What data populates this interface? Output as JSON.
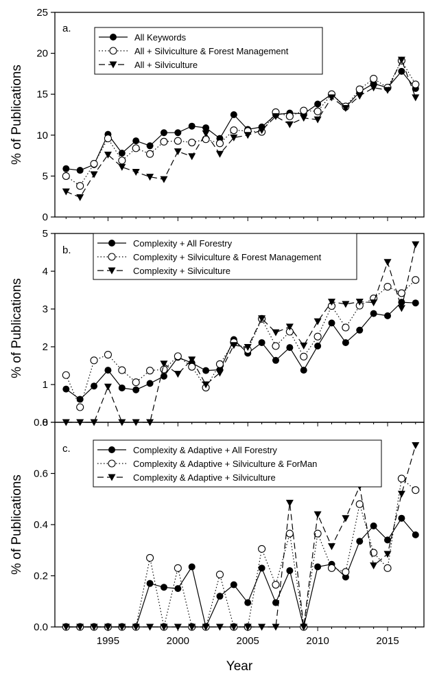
{
  "chart_data": [
    {
      "type": "line",
      "panel_label": "a.",
      "ylabel": "% of Publications",
      "ylim": [
        0,
        25
      ],
      "yticks": [
        "0",
        "5",
        "10",
        "15",
        "20",
        "25"
      ],
      "x": [
        1992,
        1993,
        1994,
        1995,
        1996,
        1997,
        1998,
        1999,
        2000,
        2001,
        2002,
        2003,
        2004,
        2005,
        2006,
        2007,
        2008,
        2009,
        2010,
        2011,
        2012,
        2013,
        2014,
        2015,
        2016,
        2017
      ],
      "series": [
        {
          "name": "All Keywords",
          "marker": "filled-circle",
          "line": "solid",
          "values": [
            5.9,
            5.7,
            6.4,
            10.1,
            7.8,
            9.3,
            8.7,
            10.3,
            10.3,
            11.1,
            10.9,
            9.6,
            12.5,
            10.7,
            11.0,
            12.5,
            12.7,
            12.6,
            13.8,
            15.0,
            13.4,
            15.3,
            16.3,
            15.8,
            17.8,
            15.7
          ]
        },
        {
          "name": "All + Silviculture & Forest Management",
          "marker": "open-circle",
          "line": "dotted",
          "values": [
            5.0,
            3.8,
            6.5,
            9.6,
            6.9,
            8.4,
            7.7,
            9.2,
            9.3,
            9.1,
            9.5,
            9.0,
            10.6,
            10.5,
            10.4,
            12.8,
            12.3,
            13.0,
            12.9,
            15.0,
            13.5,
            15.6,
            16.9,
            15.8,
            19.1,
            16.2
          ]
        },
        {
          "name": "All + Silviculture",
          "marker": "filled-triangle-down",
          "line": "dashed",
          "values": [
            3.1,
            2.4,
            5.2,
            7.6,
            6.1,
            5.5,
            4.9,
            4.6,
            8.0,
            7.4,
            10.2,
            7.7,
            9.7,
            10.0,
            10.6,
            12.3,
            11.3,
            12.1,
            11.9,
            14.6,
            13.3,
            14.8,
            15.8,
            15.5,
            19.2,
            14.6
          ]
        }
      ]
    },
    {
      "type": "line",
      "panel_label": "b.",
      "ylabel": "% of Publications",
      "ylim": [
        0,
        5
      ],
      "yticks": [
        "0",
        "1",
        "2",
        "3",
        "4",
        "5"
      ],
      "x": [
        1992,
        1993,
        1994,
        1995,
        1996,
        1997,
        1998,
        1999,
        2000,
        2001,
        2002,
        2003,
        2004,
        2005,
        2006,
        2007,
        2008,
        2009,
        2010,
        2011,
        2012,
        2013,
        2014,
        2015,
        2016,
        2017
      ],
      "series": [
        {
          "name": "Complexity + All Forestry",
          "marker": "filled-circle",
          "line": "solid",
          "values": [
            0.88,
            0.61,
            0.96,
            1.38,
            0.91,
            0.86,
            1.03,
            1.22,
            1.72,
            1.57,
            1.37,
            1.39,
            2.19,
            1.83,
            2.11,
            1.64,
            1.98,
            1.38,
            2.02,
            2.63,
            2.11,
            2.44,
            2.88,
            2.82,
            3.18,
            3.16
          ]
        },
        {
          "name": "Complexity + Silviculture & Forest Management",
          "marker": "open-circle",
          "line": "dotted",
          "values": [
            1.25,
            0.4,
            1.64,
            1.79,
            1.38,
            1.06,
            1.37,
            1.4,
            1.75,
            1.47,
            0.92,
            1.54,
            2.12,
            1.92,
            2.74,
            2.02,
            2.4,
            1.74,
            2.27,
            3.08,
            2.51,
            3.09,
            3.28,
            3.59,
            3.42,
            3.77
          ]
        },
        {
          "name": "Complexity + Silviculture",
          "marker": "filled-triangle-down",
          "line": "dashed",
          "values": [
            0,
            0,
            0,
            0.94,
            0,
            0,
            0,
            1.55,
            1.28,
            1.66,
            1.0,
            1.31,
            2.04,
            1.99,
            2.75,
            2.38,
            2.53,
            2.03,
            2.67,
            3.19,
            3.13,
            3.19,
            3.17,
            4.24,
            3.02,
            4.71
          ]
        }
      ]
    },
    {
      "type": "line",
      "panel_label": "c.",
      "ylabel": "% of Publications",
      "xlabel": "Year",
      "ylim": [
        0,
        0.8
      ],
      "yticks": [
        "0.0",
        "0.2",
        "0.4",
        "0.6",
        "0.8"
      ],
      "xticks": [
        "1995",
        "2000",
        "2005",
        "2010",
        "2015"
      ],
      "x": [
        1992,
        1993,
        1994,
        1995,
        1996,
        1997,
        1998,
        1999,
        2000,
        2001,
        2002,
        2003,
        2004,
        2005,
        2006,
        2007,
        2008,
        2009,
        2010,
        2011,
        2012,
        2013,
        2014,
        2015,
        2016,
        2017
      ],
      "series": [
        {
          "name": "Complexity & Adaptive + All Forestry",
          "marker": "filled-circle",
          "line": "solid",
          "values": [
            0,
            0,
            0,
            0,
            0,
            0,
            0.17,
            0.155,
            0.15,
            0.235,
            0,
            0.12,
            0.165,
            0.095,
            0.23,
            0.095,
            0.22,
            0,
            0.235,
            0.245,
            0.195,
            0.335,
            0.395,
            0.34,
            0.425,
            0.36
          ]
        },
        {
          "name": "Complexity & Adaptive + Silviculture & ForMan",
          "marker": "open-circle",
          "line": "dotted",
          "values": [
            0,
            0,
            0,
            0,
            0,
            0,
            0.27,
            0,
            0.23,
            0,
            0,
            0.205,
            0,
            0,
            0.305,
            0.165,
            0.365,
            0,
            0.365,
            0.23,
            0.215,
            0.48,
            0.29,
            0.23,
            0.58,
            0.535
          ]
        },
        {
          "name": "Complexity & Adaptive + Silviculture",
          "marker": "filled-triangle-down",
          "line": "dashed",
          "values": [
            0,
            0,
            0,
            0,
            0,
            0,
            0,
            0,
            0,
            0,
            0,
            0,
            0,
            0,
            0,
            0,
            0.485,
            0,
            0.44,
            0.315,
            0.425,
            0.55,
            0.24,
            0.285,
            0.52,
            0.71
          ]
        }
      ]
    }
  ]
}
